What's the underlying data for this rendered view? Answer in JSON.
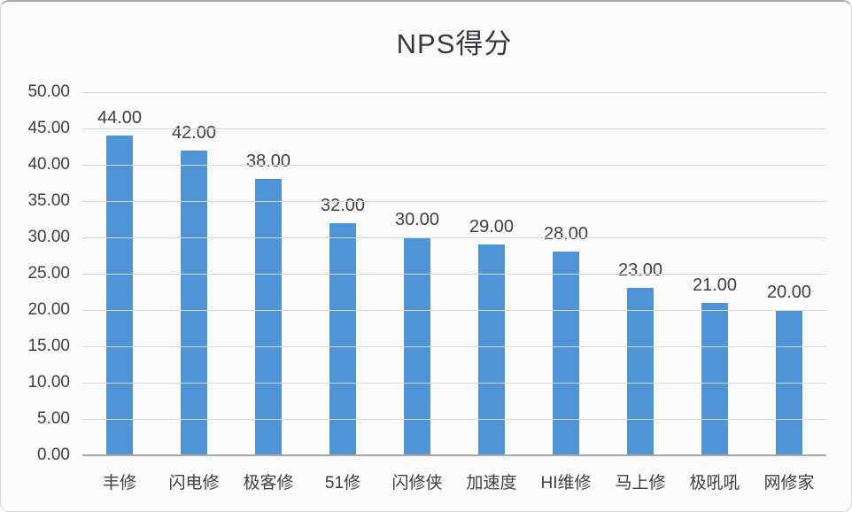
{
  "chart_data": {
    "type": "bar",
    "title": "NPS得分",
    "categories": [
      "丰修",
      "闪电修",
      "极客修",
      "51修",
      "闪修侠",
      "加速度",
      "HI维修",
      "马上修",
      "极吼吼",
      "网修家"
    ],
    "values": [
      44,
      42,
      38,
      32,
      30,
      29,
      28,
      23,
      21,
      20
    ],
    "data_labels": [
      "44.00",
      "42.00",
      "38.00",
      "32.00",
      "30.00",
      "29.00",
      "28.00",
      "23.00",
      "21.00",
      "20.00"
    ],
    "y_ticks": [
      "50.00",
      "45.00",
      "40.00",
      "35.00",
      "30.00",
      "25.00",
      "20.00",
      "15.00",
      "10.00",
      "5.00",
      "0.00"
    ],
    "ylim": [
      0,
      50
    ],
    "xlabel": "",
    "ylabel": "",
    "grid": "horizontal-major",
    "legend": "none",
    "colors": {
      "bar": "#4E94D6",
      "gridline": "#D8D8D8",
      "axis_line": "#A8A8A8",
      "text": "#3F3F3F",
      "title_text": "#3A3640",
      "background": "#FCFBFB"
    }
  }
}
